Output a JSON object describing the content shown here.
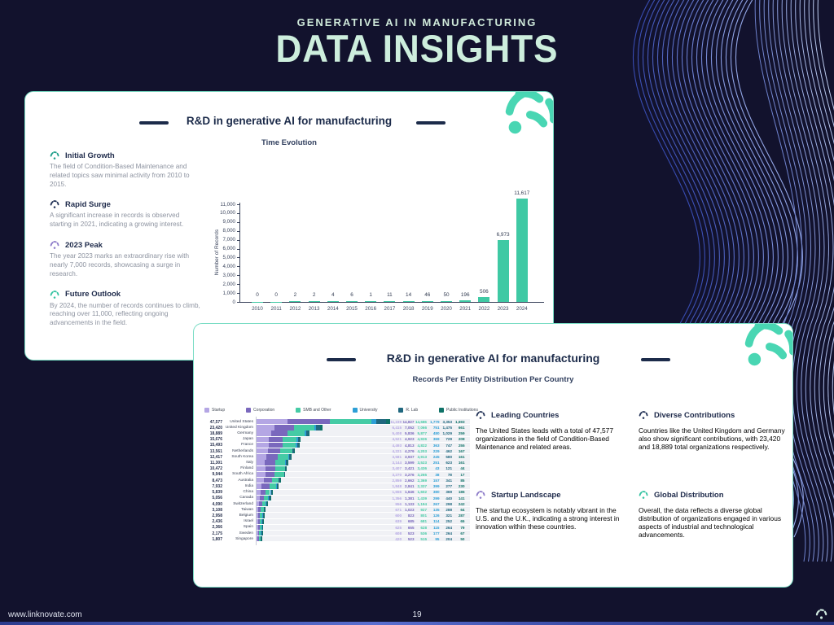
{
  "header": {
    "eyebrow": "GENERATIVE AI IN MANUFACTURING",
    "title": "DATA INSIGHTS"
  },
  "card1": {
    "title": "R&D in generative AI for manufacturing",
    "subtitle": "Time Evolution",
    "insights": [
      {
        "heading": "Initial Growth",
        "icon_color": "#1f9e8a",
        "text": "The field of Condition-Based Maintenance and related topics saw minimal activity from 2010 to 2015."
      },
      {
        "heading": "Rapid Surge",
        "icon_color": "#233357",
        "text": "A significant increase in records is observed starting in 2021, indicating a growing interest."
      },
      {
        "heading": "2023 Peak",
        "icon_color": "#8d7cc9",
        "text": "The year 2023 marks an extraordinary rise with nearly 7,000 records, showcasing a surge in research."
      },
      {
        "heading": "Future Outlook",
        "icon_color": "#35c3a2",
        "text": "By 2024, the number of records continues to climb, reaching over 11,000, reflecting ongoing advancements in the field."
      }
    ]
  },
  "card2": {
    "title": "R&D in generative AI for manufacturing",
    "subtitle": "Records Per Entity Distribution Per Country",
    "insights": [
      {
        "heading": "Leading Countries",
        "icon_color": "#233357",
        "text": "The United States leads with a total of 47,577 organizations in the field of Condition-Based Maintenance and related areas."
      },
      {
        "heading": "Diverse Contributions",
        "icon_color": "#233357",
        "text": "Countries like the United Kingdom and Germany also show significant contributions, with 23,420 and 18,889 total organizations respectively."
      },
      {
        "heading": "Startup Landscape",
        "icon_color": "#8d7cc9",
        "text": "The startup ecosystem is notably vibrant in the U.S. and the U.K., indicating a strong interest in innovation within these countries."
      },
      {
        "heading": "Global Distribution",
        "icon_color": "#35c3a2",
        "text": "Overall, the data reflects a diverse global distribution of organizations engaged in various aspects of industrial and technological advancements."
      }
    ]
  },
  "chart_data": [
    {
      "type": "bar",
      "title": "R&D in generative AI for manufacturing",
      "subtitle": "Time Evolution",
      "xlabel": "",
      "ylabel": "Number of Records",
      "ylim": [
        0,
        11000
      ],
      "ytick_step": 1000,
      "grid": false,
      "bar_color": "#3fc9a4",
      "categories": [
        "2010",
        "2011",
        "2012",
        "2013",
        "2014",
        "2015",
        "2016",
        "2017",
        "2018",
        "2019",
        "2020",
        "2021",
        "2022",
        "2023",
        "2024"
      ],
      "values": [
        0,
        0,
        2,
        2,
        4,
        6,
        1,
        11,
        14,
        46,
        50,
        196,
        506,
        6973,
        11617
      ]
    },
    {
      "type": "bar-horizontal-stacked",
      "title": "R&D in generative AI for manufacturing",
      "subtitle": "Records Per Entity Distribution Per Country",
      "legend_position": "top",
      "xmax": 47577,
      "series_names": [
        "Startup",
        "Corporation",
        "SMB and Other",
        "University",
        "R. Lab",
        "Public Institutions"
      ],
      "series_colors": [
        "#b4a6e4",
        "#7a68bd",
        "#45cba5",
        "#2d9fd6",
        "#20687f",
        "#0f7268"
      ],
      "rows": [
        {
          "country": "United States",
          "total": 47577,
          "values": [
            11239,
            14827,
            14686,
            1779,
            3353,
            1693
          ]
        },
        {
          "country": "United Kingdom",
          "total": 23420,
          "values": [
            6415,
            7052,
            7066,
            751,
            1475,
            661
          ]
        },
        {
          "country": "Germany",
          "total": 18889,
          "values": [
            5408,
            5836,
            5877,
            480,
            1029,
            259
          ]
        },
        {
          "country": "Japan",
          "total": 15676,
          "values": [
            4521,
            4923,
            4926,
            369,
            729,
            208
          ]
        },
        {
          "country": "France",
          "total": 15493,
          "values": [
            4493,
            4813,
            4822,
            363,
            747,
            255
          ]
        },
        {
          "country": "Netherlands",
          "total": 13561,
          "values": [
            4221,
            4279,
            4203,
            229,
            462,
            167
          ]
        },
        {
          "country": "South Korea",
          "total": 12417,
          "values": [
            3581,
            3937,
            3913,
            245,
            580,
            161
          ]
        },
        {
          "country": "Italy",
          "total": 11301,
          "values": [
            3144,
            3599,
            3523,
            251,
            623,
            161
          ]
        },
        {
          "country": "Finland",
          "total": 10472,
          "values": [
            3407,
            3421,
            3436,
            43,
            121,
            44
          ]
        },
        {
          "country": "South Africa",
          "total": 9944,
          "values": [
            3270,
            3276,
            3265,
            38,
            78,
            17
          ]
        },
        {
          "country": "Australia",
          "total": 8473,
          "values": [
            2859,
            2662,
            2369,
            157,
            341,
            85
          ]
        },
        {
          "country": "India",
          "total": 7932,
          "values": [
            1848,
            2841,
            2337,
            399,
            277,
            230
          ]
        },
        {
          "country": "China",
          "total": 5839,
          "values": [
            1656,
            1646,
            1602,
            380,
            369,
            186
          ]
        },
        {
          "country": "Canada",
          "total": 5056,
          "values": [
            1356,
            1381,
            1439,
            299,
            440,
            141
          ]
        },
        {
          "country": "Switzerland",
          "total": 4090,
          "values": [
            956,
            1133,
            1194,
            267,
            298,
            242
          ]
        },
        {
          "country": "Taiwan",
          "total": 3108,
          "values": [
            671,
            1023,
            927,
            135,
            288,
            64
          ]
        },
        {
          "country": "Belgium",
          "total": 2958,
          "values": [
            600,
            823,
            801,
            126,
            321,
            287
          ]
        },
        {
          "country": "Israel",
          "total": 2436,
          "values": [
            639,
            685,
            681,
            114,
            252,
            65
          ]
        },
        {
          "country": "Spain",
          "total": 2366,
          "values": [
            625,
            655,
            628,
            115,
            264,
            79
          ]
        },
        {
          "country": "Sweden",
          "total": 2175,
          "values": [
            608,
            523,
            536,
            177,
            264,
            67
          ]
        },
        {
          "country": "Singapore",
          "total": 1807,
          "values": [
            420,
            523,
            515,
            95,
            204,
            50
          ]
        }
      ]
    }
  ],
  "footer": {
    "website": "www.linknovate.com",
    "page": "19"
  }
}
